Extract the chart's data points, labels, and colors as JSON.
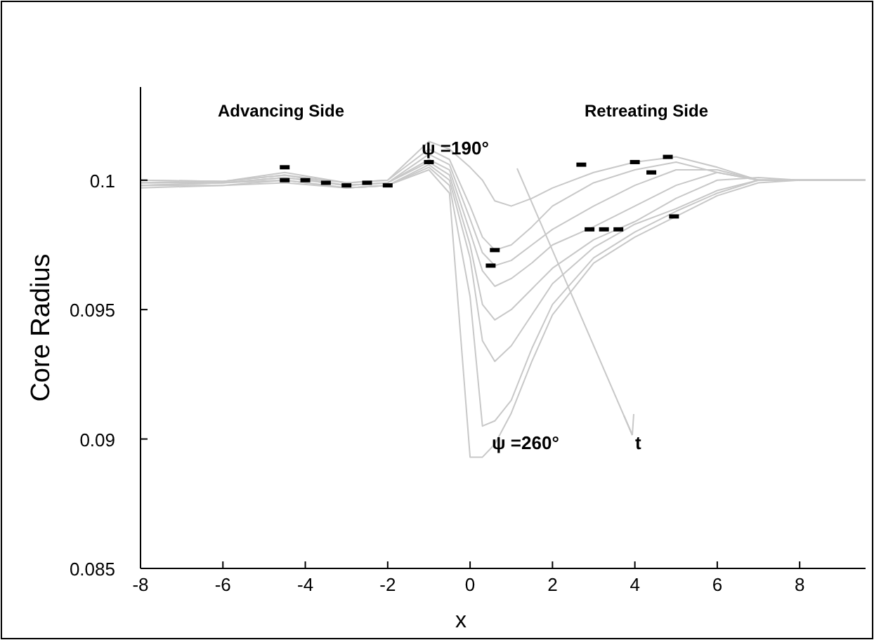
{
  "chart_data": {
    "type": "line",
    "xlabel": "x",
    "ylabel": "Core Radius",
    "xlim": [
      -8,
      9.6
    ],
    "ylim": [
      0.085,
      0.1036
    ],
    "xticks": [
      -8,
      -6,
      -4,
      -2,
      0,
      2,
      4,
      6,
      8
    ],
    "yticks": [
      0.085,
      0.09,
      0.095,
      0.1
    ],
    "grid": false,
    "x": [
      -8,
      -6,
      -4.5,
      -3,
      -2,
      -1,
      -0.5,
      0,
      0.3,
      0.6,
      1,
      1.5,
      2,
      3,
      4,
      5,
      6,
      7,
      8,
      9.6
    ],
    "series": [
      {
        "color": "#c8c8c8",
        "values": [
          0.1,
          0.09995,
          0.1002,
          0.0999,
          0.1,
          0.1015,
          0.1012,
          0.1005,
          0.1,
          0.0992,
          0.099,
          0.0993,
          0.0997,
          0.1003,
          0.1007,
          0.1009,
          0.1005,
          0.1,
          0.1,
          0.1
        ]
      },
      {
        "color": "#c8c8c8",
        "values": [
          0.1,
          0.09995,
          0.1003,
          0.0999,
          0.1,
          0.1012,
          0.1008,
          0.099,
          0.0978,
          0.0973,
          0.0975,
          0.0982,
          0.099,
          0.0999,
          0.1004,
          0.1007,
          0.1003,
          0.1,
          0.1,
          0.1
        ]
      },
      {
        "color": "#c8c8c8",
        "values": [
          0.0999,
          0.09995,
          0.1002,
          0.0998,
          0.0999,
          0.101,
          0.1006,
          0.0985,
          0.0972,
          0.0967,
          0.0969,
          0.0975,
          0.0981,
          0.099,
          0.0998,
          0.1004,
          0.1004,
          0.1,
          0.1,
          0.1
        ]
      },
      {
        "color": "#c8c8c8",
        "values": [
          0.0999,
          0.0999,
          0.1001,
          0.0998,
          0.0999,
          0.1008,
          0.1004,
          0.098,
          0.0965,
          0.0959,
          0.0962,
          0.0968,
          0.0975,
          0.0982,
          0.099,
          0.0998,
          0.1003,
          0.1,
          0.1,
          0.1
        ]
      },
      {
        "color": "#c8c8c8",
        "values": [
          0.0998,
          0.0999,
          0.1001,
          0.0998,
          0.0999,
          0.1007,
          0.1002,
          0.0975,
          0.0952,
          0.0946,
          0.095,
          0.0958,
          0.0966,
          0.0977,
          0.0984,
          0.0993,
          0.1,
          0.1001,
          0.1,
          0.1
        ]
      },
      {
        "color": "#c8c8c8",
        "values": [
          0.0998,
          0.0999,
          0.1,
          0.0997,
          0.0998,
          0.1006,
          0.1,
          0.097,
          0.0938,
          0.093,
          0.0936,
          0.0948,
          0.096,
          0.0974,
          0.0983,
          0.0989,
          0.0996,
          0.1,
          0.1,
          0.1
        ]
      },
      {
        "color": "#c8c8c8",
        "values": [
          0.0998,
          0.0998,
          0.1,
          0.0997,
          0.0998,
          0.1005,
          0.0998,
          0.0955,
          0.0905,
          0.0907,
          0.0915,
          0.0935,
          0.0952,
          0.097,
          0.098,
          0.0988,
          0.0995,
          0.1,
          0.1,
          0.1
        ]
      },
      {
        "color": "#c8c8c8",
        "values": [
          0.0997,
          0.0998,
          0.0999,
          0.0997,
          0.0998,
          0.1004,
          0.0995,
          0.0893,
          0.0893,
          0.0898,
          0.091,
          0.093,
          0.0948,
          0.0968,
          0.0978,
          0.0986,
          0.0994,
          0.0999,
          0.1,
          0.1
        ]
      },
      {
        "type": "scatter",
        "marker": "square",
        "color": "#000000",
        "x": [
          -4.5,
          -4.5,
          -4,
          -3.5,
          -3,
          -2.5,
          -2,
          -1,
          0.6,
          0.5,
          2.9,
          3.25,
          3.6,
          4.95,
          2.7,
          4,
          4.4,
          4.8
        ],
        "values": [
          0.1005,
          0.1,
          0.1,
          0.0999,
          0.0998,
          0.0999,
          0.0998,
          0.1007,
          0.0973,
          0.0967,
          0.0981,
          0.0981,
          0.0981,
          0.0986,
          0.1006,
          0.1007,
          0.1003,
          0.1009
        ]
      }
    ],
    "annotations": [
      "Advancing Side",
      "Retreating Side",
      "ψ =190°",
      "ψ =260°",
      "t"
    ]
  }
}
